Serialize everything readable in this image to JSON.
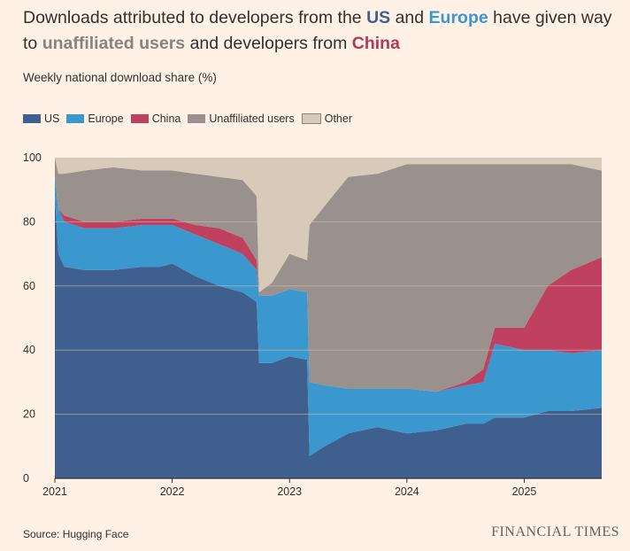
{
  "headline": {
    "part1": "Downloads attributed to developers from the ",
    "us": "US",
    "part2": " and ",
    "europe": "Europe",
    "part3": " have given way to ",
    "unaffiliated": "unaffiliated users",
    "part4": " and developers from ",
    "china": "China"
  },
  "subtitle": "Weekly national download share (%)",
  "source": "Source: Hugging Face",
  "brand": "FINANCIAL TIMES",
  "colors": {
    "US": "#3f5f8f",
    "Europe": "#3a98cf",
    "China": "#c0405f",
    "Unaffiliated users": "#9a918c",
    "Other": "#d8cabb",
    "background": "#fff1e5",
    "grid": "#d2c6b9"
  },
  "chart_data": {
    "type": "area",
    "stacked": true,
    "ylabel": "",
    "ylim": [
      0,
      100
    ],
    "yticks": [
      0,
      20,
      40,
      60,
      80,
      100
    ],
    "xlim": [
      2021.0,
      2025.66
    ],
    "xticks": [
      "2021",
      "2022",
      "2023",
      "2024",
      "2025"
    ],
    "grid": true,
    "legend_position": "top-left",
    "x": [
      2021.0,
      2021.03,
      2021.08,
      2021.25,
      2021.5,
      2021.75,
      2021.9,
      2022.0,
      2022.2,
      2022.4,
      2022.6,
      2022.72,
      2022.74,
      2022.85,
      2023.0,
      2023.15,
      2023.17,
      2023.3,
      2023.5,
      2023.75,
      2024.0,
      2024.25,
      2024.5,
      2024.65,
      2024.75,
      2025.0,
      2025.2,
      2025.4,
      2025.66
    ],
    "series": [
      {
        "name": "US",
        "values": [
          88,
          70,
          66,
          65,
          65,
          66,
          66,
          67,
          63,
          60,
          58,
          55,
          36,
          36,
          38,
          37,
          7,
          10,
          14,
          16,
          14,
          15,
          17,
          17,
          19,
          19,
          21,
          21,
          22
        ]
      },
      {
        "name": "Europe",
        "values": [
          6,
          14,
          14,
          13,
          13,
          13,
          13,
          12,
          13,
          13,
          12,
          10,
          21,
          21,
          21,
          21,
          23,
          19,
          14,
          12,
          14,
          12,
          12,
          13,
          23,
          21,
          19,
          18,
          18
        ]
      },
      {
        "name": "China",
        "values": [
          0,
          0,
          2,
          2,
          2,
          2,
          2,
          2,
          3,
          5,
          5,
          3,
          0,
          0,
          0,
          0,
          0,
          0,
          0,
          0,
          0,
          0,
          1,
          4,
          5,
          7,
          20,
          26,
          29
        ]
      },
      {
        "name": "Unaffiliated users",
        "values": [
          6,
          11,
          13,
          16,
          17,
          15,
          15,
          15,
          16,
          16,
          18,
          20,
          1,
          4,
          11,
          10,
          49,
          56,
          66,
          67,
          70,
          71,
          68,
          64,
          51,
          51,
          38,
          33,
          27
        ]
      },
      {
        "name": "Other",
        "values": [
          0,
          5,
          5,
          4,
          3,
          4,
          4,
          4,
          5,
          6,
          7,
          12,
          42,
          39,
          30,
          32,
          21,
          15,
          6,
          5,
          2,
          2,
          2,
          2,
          2,
          2,
          2,
          2,
          4
        ]
      }
    ]
  }
}
